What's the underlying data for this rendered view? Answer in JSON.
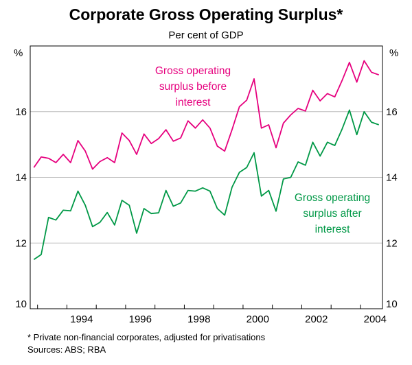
{
  "chart_data": {
    "type": "line",
    "title": "Corporate Gross Operating Surplus*",
    "subtitle": "Per cent of GDP",
    "ylabel_left": "%",
    "ylabel_right": "%",
    "ylim": [
      10,
      18
    ],
    "yticks": [
      10,
      12,
      14,
      16
    ],
    "xlim": [
      1992.75,
      2004.75
    ],
    "xticks": [
      "1994",
      "1996",
      "1998",
      "2000",
      "2002",
      "2004"
    ],
    "x_start": 1992.875,
    "x_step": 0.25,
    "series": [
      {
        "name": "Gross operating surplus before interest",
        "label_lines": [
          "Gross operating",
          "surplus before",
          "interest"
        ],
        "color": "#e6007e",
        "values": [
          14.3,
          14.62,
          14.58,
          14.45,
          14.7,
          14.45,
          15.12,
          14.8,
          14.25,
          14.48,
          14.6,
          14.45,
          15.35,
          15.12,
          14.7,
          15.32,
          15.03,
          15.18,
          15.45,
          15.1,
          15.2,
          15.72,
          15.5,
          15.75,
          15.5,
          14.95,
          14.8,
          15.45,
          16.15,
          16.35,
          17.0,
          15.5,
          15.6,
          14.9,
          15.65,
          15.9,
          16.1,
          16.02,
          16.65,
          16.33,
          16.55,
          16.45,
          16.95,
          17.5,
          16.9,
          17.55,
          17.2,
          17.12
        ]
      },
      {
        "name": "Gross operating surplus after interest",
        "label_lines": [
          "Gross operating",
          "surplus after",
          "interest"
        ],
        "color": "#009846",
        "values": [
          11.5,
          11.65,
          12.78,
          12.7,
          13.0,
          12.98,
          13.58,
          13.15,
          12.5,
          12.63,
          12.93,
          12.55,
          13.3,
          13.15,
          12.3,
          13.05,
          12.9,
          12.92,
          13.6,
          13.12,
          13.22,
          13.6,
          13.58,
          13.68,
          13.58,
          13.05,
          12.85,
          13.7,
          14.15,
          14.3,
          14.75,
          13.43,
          13.6,
          12.97,
          13.95,
          14.0,
          14.47,
          14.37,
          15.07,
          14.65,
          15.07,
          14.97,
          15.47,
          16.05,
          15.3,
          16.0,
          15.68,
          15.6
        ]
      }
    ]
  },
  "footnote": "*   Private non-financial corporates, adjusted for privatisations",
  "sources": "Sources: ABS; RBA"
}
